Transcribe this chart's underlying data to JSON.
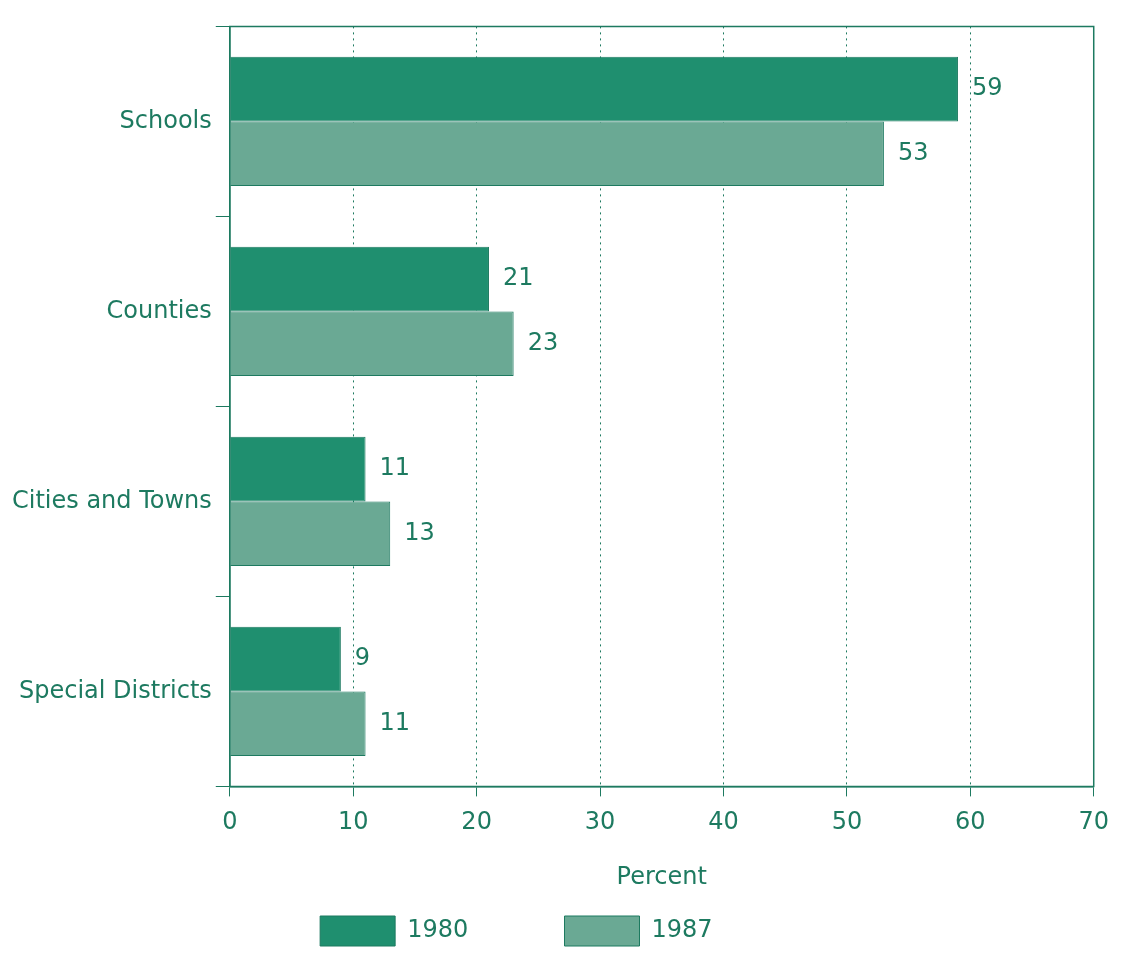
{
  "chart_data": {
    "type": "bar",
    "orientation": "horizontal",
    "xlabel": "Percent",
    "categories": [
      "Schools",
      "Counties",
      "Cities and Towns",
      "Special Districts"
    ],
    "series": [
      {
        "name": "1980",
        "color": "#1f8f6f",
        "values": [
          59,
          21,
          11,
          9
        ]
      },
      {
        "name": "1987",
        "color": "#6aa994",
        "values": [
          53,
          23,
          13,
          11
        ]
      }
    ],
    "xlim": [
      0,
      70
    ],
    "xticks": [
      0,
      10,
      20,
      30,
      40,
      50,
      60,
      70
    ],
    "grid": "x",
    "legend": "bottom",
    "data_labels": true
  }
}
